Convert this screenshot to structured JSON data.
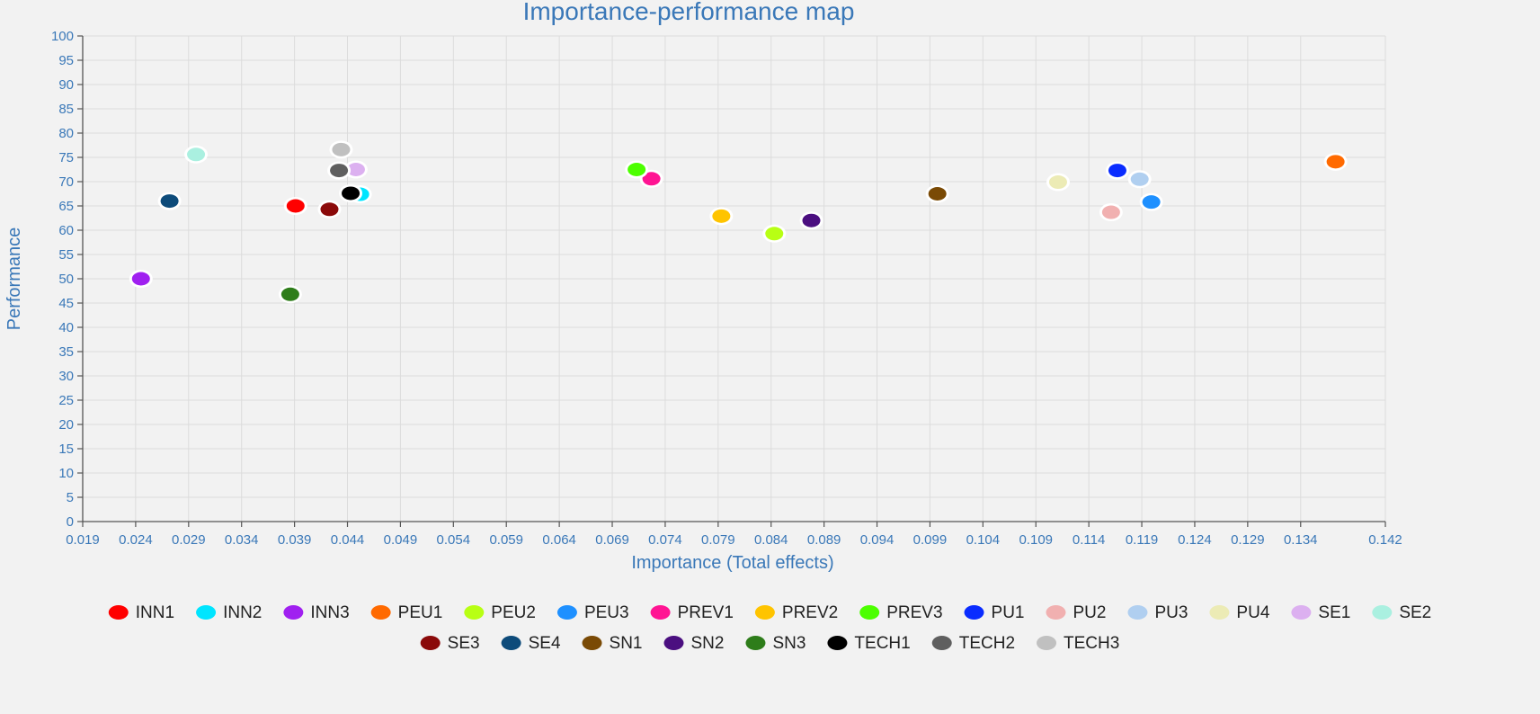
{
  "chart_data": {
    "type": "scatter",
    "title": "Importance-performance map",
    "xlabel": "Importance (Total effects)",
    "ylabel": "Performance",
    "xlim": [
      0.019,
      0.142
    ],
    "ylim": [
      0,
      100
    ],
    "x_ticks": [
      "0.019",
      "0.024",
      "0.029",
      "0.034",
      "0.039",
      "0.044",
      "0.049",
      "0.054",
      "0.059",
      "0.064",
      "0.069",
      "0.074",
      "0.079",
      "0.084",
      "0.089",
      "0.094",
      "0.099",
      "0.104",
      "0.109",
      "0.114",
      "0.119",
      "0.124",
      "0.129",
      "0.134",
      "0.142"
    ],
    "y_ticks": [
      0,
      5,
      10,
      15,
      20,
      25,
      30,
      35,
      40,
      45,
      50,
      55,
      60,
      65,
      70,
      75,
      80,
      85,
      90,
      95,
      100
    ],
    "grid": true,
    "legend_position": "bottom",
    "series": [
      {
        "name": "INN1",
        "color": "#ff0000",
        "x": 0.0391,
        "y": 65.0
      },
      {
        "name": "INN2",
        "color": "#00e5ff",
        "x": 0.0452,
        "y": 67.4
      },
      {
        "name": "INN3",
        "color": "#a020f0",
        "x": 0.0245,
        "y": 50.0
      },
      {
        "name": "PEU1",
        "color": "#ff6a00",
        "x": 0.1373,
        "y": 74.1
      },
      {
        "name": "PEU2",
        "color": "#b8ff14",
        "x": 0.0843,
        "y": 59.3
      },
      {
        "name": "PEU3",
        "color": "#1e90ff",
        "x": 0.1199,
        "y": 65.8
      },
      {
        "name": "PREV1",
        "color": "#ff1493",
        "x": 0.0727,
        "y": 70.6
      },
      {
        "name": "PREV2",
        "color": "#ffc400",
        "x": 0.0793,
        "y": 62.9
      },
      {
        "name": "PREV3",
        "color": "#4cff00",
        "x": 0.0713,
        "y": 72.5
      },
      {
        "name": "PU1",
        "color": "#0a2cff",
        "x": 0.1167,
        "y": 72.3
      },
      {
        "name": "PU2",
        "color": "#f1b0b0",
        "x": 0.1161,
        "y": 63.7
      },
      {
        "name": "PU3",
        "color": "#b0cff0",
        "x": 0.1188,
        "y": 70.5
      },
      {
        "name": "PU4",
        "color": "#ecebb5",
        "x": 0.1111,
        "y": 69.9
      },
      {
        "name": "SE1",
        "color": "#dcb0f0",
        "x": 0.0448,
        "y": 72.5
      },
      {
        "name": "SE2",
        "color": "#aaf0e0",
        "x": 0.0297,
        "y": 75.6
      },
      {
        "name": "SE3",
        "color": "#8b0a0a",
        "x": 0.0423,
        "y": 64.3
      },
      {
        "name": "SE4",
        "color": "#0d4b7a",
        "x": 0.0272,
        "y": 66.0
      },
      {
        "name": "SN1",
        "color": "#7a4a05",
        "x": 0.0997,
        "y": 67.5
      },
      {
        "name": "SN2",
        "color": "#4b0f80",
        "x": 0.0878,
        "y": 62.0
      },
      {
        "name": "SN3",
        "color": "#2e7d1a",
        "x": 0.0386,
        "y": 46.8
      },
      {
        "name": "TECH1",
        "color": "#000000",
        "x": 0.0443,
        "y": 67.6
      },
      {
        "name": "TECH2",
        "color": "#5f5f5f",
        "x": 0.0432,
        "y": 72.3
      },
      {
        "name": "TECH3",
        "color": "#c0c0c0",
        "x": 0.0434,
        "y": 76.6
      }
    ]
  }
}
